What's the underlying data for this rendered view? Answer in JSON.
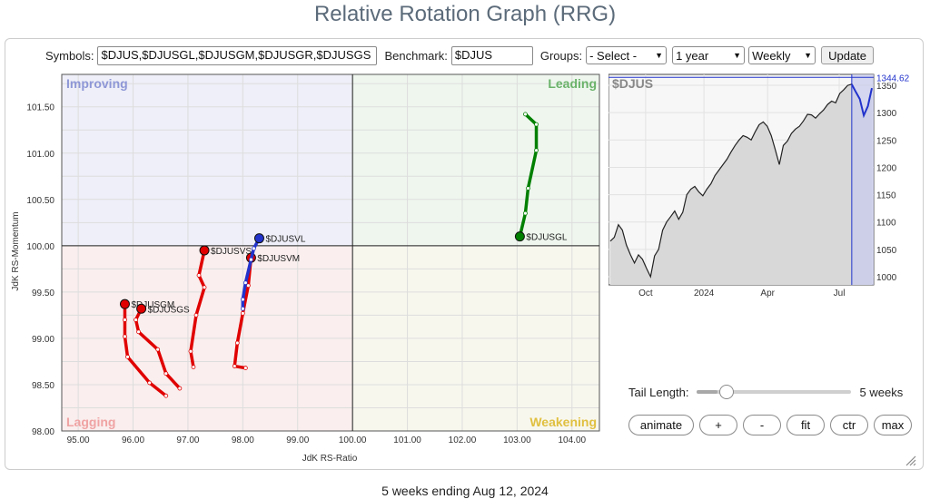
{
  "title": "Relative Rotation Graph (RRG)",
  "controls": {
    "symbols_label": "Symbols:",
    "symbols_value": "$DJUS,$DJUSGL,$DJUSGM,$DJUSGR,$DJUSGS",
    "benchmark_label": "Benchmark:",
    "benchmark_value": "$DJUS",
    "groups_label": "Groups:",
    "groups_value": "- Select -",
    "period_value": "1 year",
    "interval_value": "Weekly",
    "update_label": "Update"
  },
  "chart_data": [
    {
      "type": "scatter",
      "chart": "rrg",
      "xlabel": "JdK RS-Ratio",
      "ylabel": "JdK RS-Momentum",
      "xlim": [
        94.7,
        104.5
      ],
      "ylim": [
        98.0,
        101.85
      ],
      "x_ticks": [
        "95.00",
        "96.00",
        "97.00",
        "98.00",
        "99.00",
        "100.00",
        "101.00",
        "102.00",
        "103.00",
        "104.00"
      ],
      "y_ticks": [
        "98.00",
        "98.50",
        "99.00",
        "99.50",
        "100.00",
        "100.50",
        "101.00",
        "101.50"
      ],
      "grid": true,
      "quadrants": {
        "improving": "Improving",
        "leading": "Leading",
        "lagging": "Lagging",
        "weakening": "Weakening"
      },
      "series": [
        {
          "name": "$DJUSGL",
          "color": "#008000",
          "points": [
            [
              103.15,
              101.42
            ],
            [
              103.35,
              101.31
            ],
            [
              103.35,
              101.03
            ],
            [
              103.2,
              100.62
            ],
            [
              103.15,
              100.35
            ],
            [
              103.05,
              100.1
            ]
          ]
        },
        {
          "name": "$DJUSGM",
          "color": "#e00000",
          "points": [
            [
              96.6,
              98.38
            ],
            [
              96.3,
              98.52
            ],
            [
              95.9,
              98.8
            ],
            [
              95.85,
              99.02
            ],
            [
              95.85,
              99.2
            ],
            [
              95.85,
              99.37
            ]
          ]
        },
        {
          "name": "$DJUSGS",
          "color": "#e00000",
          "points": [
            [
              96.85,
              98.46
            ],
            [
              96.6,
              98.62
            ],
            [
              96.45,
              98.88
            ],
            [
              96.1,
              99.07
            ],
            [
              96.05,
              99.2
            ],
            [
              96.15,
              99.32
            ]
          ]
        },
        {
          "name": "$DJUSVS",
          "color": "#e00000",
          "points": [
            [
              97.1,
              98.69
            ],
            [
              97.05,
              98.86
            ],
            [
              97.15,
              99.25
            ],
            [
              97.3,
              99.55
            ],
            [
              97.2,
              99.68
            ],
            [
              97.3,
              99.95
            ]
          ]
        },
        {
          "name": "$DJUSVM",
          "color": "#e00000",
          "points": [
            [
              98.05,
              98.68
            ],
            [
              97.85,
              98.7
            ],
            [
              97.9,
              98.95
            ],
            [
              98.0,
              99.27
            ],
            [
              98.1,
              99.57
            ],
            [
              98.15,
              99.87
            ]
          ]
        },
        {
          "name": "$DJUSVL",
          "color": "#2233cc",
          "points": [
            [
              98.0,
              99.32
            ],
            [
              98.0,
              99.42
            ],
            [
              98.05,
              99.6
            ],
            [
              98.15,
              99.85
            ],
            [
              98.2,
              99.97
            ],
            [
              98.3,
              100.08
            ]
          ]
        }
      ]
    },
    {
      "type": "area",
      "title": "$DJUS",
      "last_value": "1344.62",
      "x_ticks": [
        "Oct",
        "2024",
        "Apr",
        "Jul"
      ],
      "y_ticks": [
        "1000",
        "1050",
        "1100",
        "1150",
        "1200",
        "1250",
        "1300",
        "1350"
      ],
      "ylim": [
        985,
        1370
      ],
      "values": [
        1065,
        1072,
        1095,
        1085,
        1058,
        1040,
        1025,
        1040,
        1032,
        1015,
        1000,
        1038,
        1050,
        1085,
        1100,
        1110,
        1120,
        1105,
        1118,
        1150,
        1160,
        1165,
        1155,
        1148,
        1160,
        1170,
        1185,
        1195,
        1205,
        1215,
        1228,
        1240,
        1250,
        1258,
        1255,
        1250,
        1265,
        1278,
        1283,
        1275,
        1258,
        1232,
        1205,
        1240,
        1248,
        1262,
        1270,
        1275,
        1285,
        1297,
        1296,
        1290,
        1298,
        1305,
        1315,
        1321,
        1318,
        1335,
        1342,
        1350,
        1352,
        1338,
        1325,
        1295,
        1312,
        1345
      ],
      "highlight_from_index": 60,
      "highlight_color": "#2233cc"
    }
  ],
  "tail": {
    "label": "Tail Length:",
    "weeks": 5,
    "max_weeks": 30,
    "value_label": "5 weeks"
  },
  "buttons": {
    "animate": "animate",
    "plus": "+",
    "minus": "-",
    "fit": "fit",
    "ctr": "ctr",
    "max": "max"
  },
  "footer": "5 weeks ending Aug 12, 2024"
}
